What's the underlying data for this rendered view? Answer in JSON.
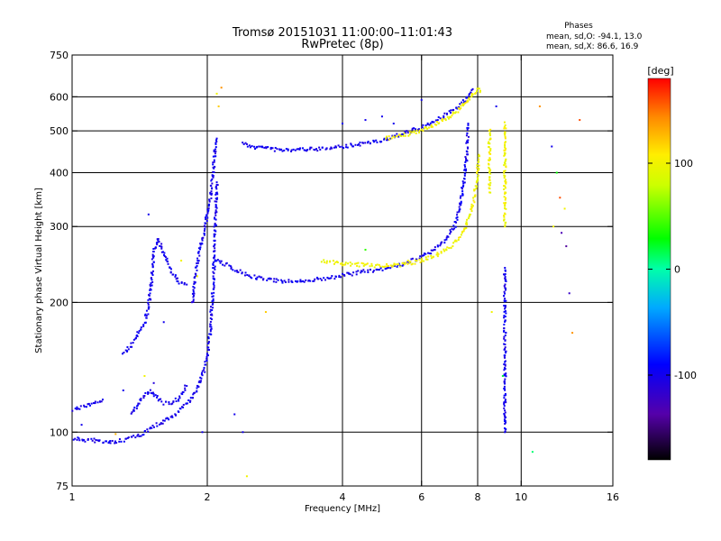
{
  "chart_data": {
    "type": "scatter",
    "title": "Tromsø 20151031 11:00:00–11:01:43",
    "subtitle": "RwPretec (8p)",
    "xlabel": "Frequency [MHz]",
    "ylabel": "Stationary phase Virtual Height [km]",
    "x_scale": "log",
    "y_scale": "log",
    "xlim": [
      1,
      16
    ],
    "ylim": [
      75,
      750
    ],
    "x_ticks": [
      1,
      2,
      4,
      6,
      8,
      10,
      16
    ],
    "y_ticks": [
      75,
      100,
      200,
      300,
      400,
      500,
      600,
      750
    ],
    "x_gridlines": [
      2,
      4,
      6,
      8,
      10
    ],
    "y_gridlines": [
      100,
      200,
      300,
      400,
      500,
      600
    ],
    "phases": {
      "title": "Phases",
      "line1": "mean, sd,O: -94.1, 13.0",
      "line2": "mean, sd,X:  86.6, 16.9"
    },
    "colorbar": {
      "label": "[deg]",
      "range": [
        -180,
        180
      ],
      "ticks": [
        100,
        0,
        -100
      ],
      "tick_labels": [
        "100",
        "0",
        "-100"
      ]
    },
    "traces": [
      {
        "phase": -100,
        "points": [
          [
            1.0,
            113
          ],
          [
            1.05,
            114
          ],
          [
            1.1,
            116
          ],
          [
            1.14,
            118
          ],
          [
            1.17,
            119
          ]
        ]
      },
      {
        "phase": -100,
        "points": [
          [
            1.0,
            97
          ],
          [
            1.05,
            96
          ],
          [
            1.1,
            96
          ],
          [
            1.15,
            95
          ],
          [
            1.2,
            95
          ],
          [
            1.25,
            95
          ],
          [
            1.3,
            96
          ],
          [
            1.35,
            97
          ],
          [
            1.4,
            98
          ],
          [
            1.45,
            100
          ],
          [
            1.5,
            102
          ],
          [
            1.55,
            104
          ],
          [
            1.6,
            106
          ],
          [
            1.7,
            110
          ],
          [
            1.8,
            116
          ],
          [
            1.9,
            126
          ],
          [
            1.95,
            135
          ],
          [
            2.0,
            150
          ],
          [
            2.03,
            170
          ],
          [
            2.05,
            200
          ],
          [
            2.07,
            240
          ],
          [
            2.08,
            280
          ],
          [
            2.09,
            330
          ],
          [
            2.1,
            380
          ]
        ]
      },
      {
        "phase": -100,
        "points": [
          [
            1.35,
            110
          ],
          [
            1.4,
            116
          ],
          [
            1.45,
            122
          ],
          [
            1.5,
            125
          ],
          [
            1.55,
            120
          ],
          [
            1.6,
            117
          ],
          [
            1.65,
            116
          ],
          [
            1.7,
            118
          ],
          [
            1.75,
            122
          ],
          [
            1.8,
            128
          ]
        ]
      },
      {
        "phase": -100,
        "points": [
          [
            1.3,
            152
          ],
          [
            1.35,
            158
          ],
          [
            1.4,
            168
          ],
          [
            1.45,
            180
          ],
          [
            1.48,
            195
          ],
          [
            1.5,
            220
          ],
          [
            1.52,
            260
          ],
          [
            1.55,
            280
          ],
          [
            1.6,
            262
          ],
          [
            1.65,
            240
          ],
          [
            1.7,
            228
          ],
          [
            1.75,
            222
          ],
          [
            1.8,
            220
          ]
        ]
      },
      {
        "phase": -100,
        "points": [
          [
            1.85,
            200
          ],
          [
            1.88,
            230
          ],
          [
            1.92,
            260
          ],
          [
            1.95,
            280
          ],
          [
            1.98,
            300
          ],
          [
            2.0,
            320
          ],
          [
            2.03,
            350
          ],
          [
            2.06,
            400
          ],
          [
            2.08,
            450
          ],
          [
            2.1,
            480
          ]
        ]
      },
      {
        "phase": -100,
        "points": [
          [
            2.4,
            470
          ],
          [
            2.5,
            460
          ],
          [
            2.7,
            455
          ],
          [
            3.0,
            450
          ],
          [
            3.3,
            452
          ],
          [
            3.6,
            455
          ],
          [
            4.0,
            460
          ],
          [
            4.5,
            468
          ],
          [
            5.0,
            478
          ],
          [
            5.5,
            495
          ],
          [
            6.0,
            510
          ],
          [
            6.5,
            530
          ],
          [
            7.0,
            555
          ],
          [
            7.3,
            575
          ],
          [
            7.6,
            600
          ],
          [
            7.8,
            625
          ]
        ]
      },
      {
        "phase": -100,
        "points": [
          [
            2.1,
            250
          ],
          [
            2.2,
            245
          ],
          [
            2.35,
            236
          ],
          [
            2.5,
            230
          ],
          [
            2.7,
            226
          ],
          [
            3.0,
            224
          ],
          [
            3.3,
            224
          ],
          [
            3.6,
            227
          ],
          [
            4.0,
            231
          ],
          [
            4.5,
            236
          ],
          [
            5.0,
            240
          ],
          [
            5.5,
            246
          ],
          [
            6.0,
            255
          ],
          [
            6.4,
            265
          ],
          [
            6.8,
            280
          ],
          [
            7.1,
            300
          ],
          [
            7.3,
            330
          ],
          [
            7.45,
            380
          ],
          [
            7.55,
            430
          ],
          [
            7.6,
            480
          ],
          [
            7.62,
            520
          ]
        ]
      },
      {
        "phase": 100,
        "points": [
          [
            3.6,
            250
          ],
          [
            4.0,
            246
          ],
          [
            4.5,
            244
          ],
          [
            5.0,
            243
          ],
          [
            5.5,
            245
          ],
          [
            6.0,
            250
          ],
          [
            6.5,
            258
          ],
          [
            7.0,
            270
          ],
          [
            7.4,
            290
          ],
          [
            7.7,
            320
          ],
          [
            7.9,
            360
          ],
          [
            8.0,
            400
          ],
          [
            8.05,
            440
          ]
        ]
      },
      {
        "phase": 100,
        "points": [
          [
            5.0,
            480
          ],
          [
            5.5,
            490
          ],
          [
            6.0,
            500
          ],
          [
            6.5,
            520
          ],
          [
            7.0,
            545
          ],
          [
            7.4,
            570
          ],
          [
            7.7,
            595
          ],
          [
            7.9,
            615
          ],
          [
            8.0,
            625
          ],
          [
            8.1,
            615
          ]
        ]
      },
      {
        "phase": -100,
        "points": [
          [
            9.2,
            240
          ],
          [
            9.2,
            220
          ],
          [
            9.2,
            200
          ],
          [
            9.2,
            180
          ],
          [
            9.2,
            160
          ],
          [
            9.2,
            140
          ],
          [
            9.2,
            120
          ],
          [
            9.2,
            100
          ]
        ]
      },
      {
        "phase": 100,
        "points": [
          [
            9.2,
            520
          ],
          [
            9.2,
            480
          ],
          [
            9.2,
            440
          ],
          [
            9.2,
            400
          ],
          [
            9.2,
            360
          ],
          [
            9.2,
            330
          ],
          [
            9.2,
            300
          ]
        ]
      },
      {
        "phase": 100,
        "points": [
          [
            8.5,
            500
          ],
          [
            8.5,
            460
          ],
          [
            8.5,
            420
          ],
          [
            8.5,
            390
          ],
          [
            8.5,
            360
          ]
        ]
      }
    ],
    "scatter_points": [
      [
        1.05,
        104,
        -100
      ],
      [
        1.25,
        99,
        130
      ],
      [
        1.3,
        125,
        -100
      ],
      [
        1.45,
        135,
        100
      ],
      [
        1.48,
        320,
        -100
      ],
      [
        1.52,
        130,
        -110
      ],
      [
        1.6,
        180,
        -100
      ],
      [
        1.75,
        250,
        100
      ],
      [
        1.9,
        230,
        100
      ],
      [
        1.95,
        100,
        -100
      ],
      [
        2.1,
        610,
        100
      ],
      [
        2.12,
        570,
        120
      ],
      [
        2.15,
        630,
        140
      ],
      [
        2.3,
        110,
        -100
      ],
      [
        2.4,
        100,
        -100
      ],
      [
        2.45,
        79,
        100
      ],
      [
        2.7,
        190,
        120
      ],
      [
        4.0,
        520,
        -100
      ],
      [
        4.5,
        530,
        -100
      ],
      [
        4.5,
        265,
        40
      ],
      [
        4.9,
        540,
        -100
      ],
      [
        5.2,
        520,
        -100
      ],
      [
        5.6,
        250,
        100
      ],
      [
        6.0,
        590,
        -100
      ],
      [
        8.6,
        190,
        100
      ],
      [
        8.8,
        570,
        -100
      ],
      [
        9.1,
        135,
        20
      ],
      [
        10.6,
        90,
        10
      ],
      [
        11.0,
        570,
        140
      ],
      [
        11.7,
        460,
        -100
      ],
      [
        11.8,
        300,
        100
      ],
      [
        12.0,
        400,
        30
      ],
      [
        12.2,
        350,
        160
      ],
      [
        12.3,
        290,
        -130
      ],
      [
        12.5,
        330,
        100
      ],
      [
        12.6,
        270,
        -140
      ],
      [
        12.8,
        210,
        -120
      ],
      [
        13.0,
        170,
        140
      ],
      [
        13.5,
        530,
        160
      ]
    ]
  }
}
